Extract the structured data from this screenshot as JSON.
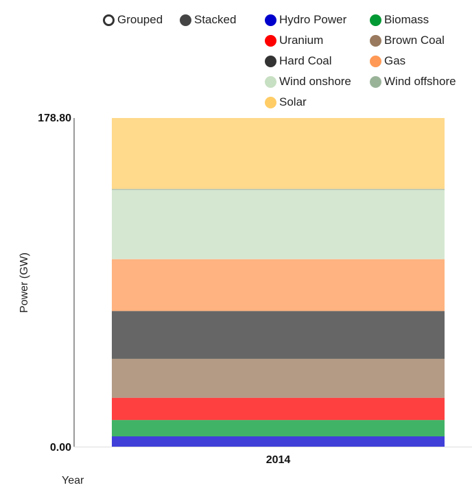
{
  "controls": {
    "grouped_label": "Grouped",
    "stacked_label": "Stacked",
    "active_mode": "stacked",
    "dot_color": "#444444"
  },
  "legend": [
    {
      "name": "Hydro Power",
      "color": "#0000cc"
    },
    {
      "name": "Biomass",
      "color": "#009933"
    },
    {
      "name": "Uranium",
      "color": "#ff0000"
    },
    {
      "name": "Brown Coal",
      "color": "#997a5e"
    },
    {
      "name": "Hard Coal",
      "color": "#333333"
    },
    {
      "name": "Gas",
      "color": "#ff9955"
    },
    {
      "name": "Wind onshore",
      "color": "#c7dfc2"
    },
    {
      "name": "Wind offshore",
      "color": "#99b399"
    },
    {
      "name": "Solar",
      "color": "#ffcc66"
    }
  ],
  "chart_data": {
    "type": "bar",
    "stacked": true,
    "categories": [
      "2014"
    ],
    "xlabel": "Year",
    "ylabel": "Power (GW)",
    "ylim": [
      0,
      178.8
    ],
    "yticks": [
      "0.00",
      "178.80"
    ],
    "series": [
      {
        "name": "Hydro Power",
        "color": "#0000cc",
        "values": [
          5.6
        ]
      },
      {
        "name": "Biomass",
        "color": "#009933",
        "values": [
          8.9
        ]
      },
      {
        "name": "Uranium",
        "color": "#ff0000",
        "values": [
          12.1
        ]
      },
      {
        "name": "Brown Coal",
        "color": "#997a5e",
        "values": [
          21.2
        ]
      },
      {
        "name": "Hard Coal",
        "color": "#333333",
        "values": [
          26.0
        ]
      },
      {
        "name": "Gas",
        "color": "#ff9955",
        "values": [
          28.2
        ]
      },
      {
        "name": "Wind onshore",
        "color": "#c7dfc2",
        "values": [
          37.6
        ]
      },
      {
        "name": "Wind offshore",
        "color": "#99b399",
        "values": [
          0.6
        ]
      },
      {
        "name": "Solar",
        "color": "#ffcc66",
        "values": [
          38.6
        ]
      }
    ]
  }
}
